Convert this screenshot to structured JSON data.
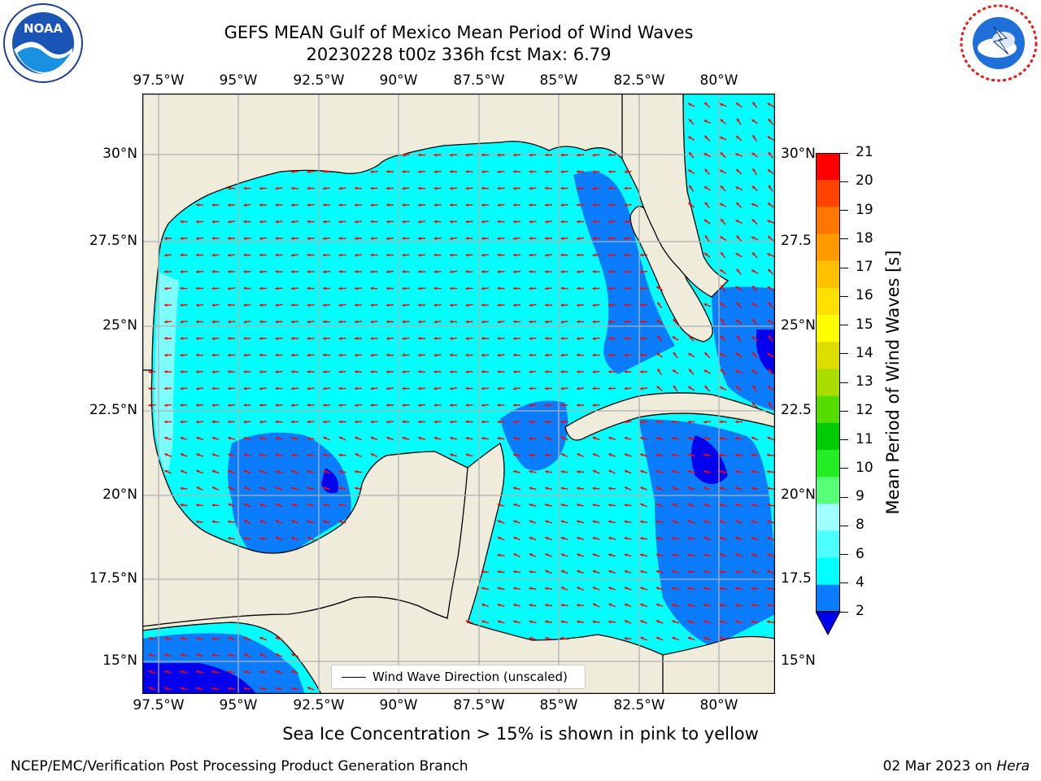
{
  "header": {
    "title_line1": "GEFS MEAN Gulf of Mexico Mean Period of Wind Waves",
    "title_line2": "20230228 t00z 336h fcst   Max: 6.79"
  },
  "logos": {
    "left": {
      "name": "noaa-logo",
      "text": "NOAA",
      "ring_text": "NATIONAL OCEANIC AND ATMOSPHERIC ADMINISTRATION · U.S. DEPARTMENT OF COMMERCE"
    },
    "right": {
      "name": "nws-logo",
      "ring_text": "NATIONAL WEATHER SERVICE"
    }
  },
  "map": {
    "lon_labels": [
      "97.5°W",
      "95°W",
      "92.5°W",
      "90°W",
      "87.5°W",
      "85°W",
      "82.5°W",
      "80°W"
    ],
    "lat_labels_left": [
      "30°N",
      "27.5°N",
      "25°N",
      "22.5°N",
      "20°N",
      "17.5°N",
      "15°N"
    ],
    "lat_labels_right": [
      "30°N",
      "27.5",
      "25°N",
      "22.5",
      "20°N",
      "17.5",
      "15°N"
    ],
    "legend_label": "Wind Wave Direction (unscaled)",
    "colors": {
      "land": "#efecdc",
      "c2_4": "#0a7dff",
      "c4_6": "#00ffff",
      "c6_8": "#7dffff",
      "c0_2": "#0000ee",
      "arrow": "#ff0000",
      "grid": "#b0b0b0"
    }
  },
  "colorbar": {
    "label": "Mean Period of Wind Waves [s]",
    "ticks": [
      "2",
      "4",
      "6",
      "8",
      "9",
      "10",
      "11",
      "12",
      "13",
      "14",
      "15",
      "16",
      "17",
      "18",
      "19",
      "20",
      "21"
    ],
    "colors": [
      "#0a7dff",
      "#00ffff",
      "#4dffff",
      "#a0ffff",
      "#55ff77",
      "#22ee22",
      "#00cc00",
      "#55dd00",
      "#aadd00",
      "#dddd00",
      "#ffff00",
      "#ffe000",
      "#ffc000",
      "#ff9900",
      "#ff7700",
      "#ff4400",
      "#ff0000"
    ],
    "under_color": "#0000ee"
  },
  "chart_data": {
    "type": "heatmap",
    "title": "GEFS MEAN Gulf of Mexico Mean Period of Wind Waves",
    "subtitle": "20230228 t00z 336h fcst   Max: 6.79",
    "variable_label": "Mean Period of Wind Waves [s]",
    "max_value": 6.79,
    "lon_range": [
      "97.5°W",
      "80°W"
    ],
    "lat_range": [
      "15°N",
      "30°N"
    ],
    "color_levels": [
      2,
      4,
      6,
      8,
      9,
      10,
      11,
      12,
      13,
      14,
      15,
      16,
      17,
      18,
      19,
      20,
      21
    ],
    "vector_field": "Wind Wave Direction (unscaled)",
    "legend_placement": "bottom-center",
    "grid": true
  },
  "footer": {
    "note": "Sea Ice Concentration > 15% is shown in pink to yellow",
    "credit": "NCEP/EMC/Verification Post Processing Product Generation Branch",
    "date": "02 Mar 2023 on ",
    "machine": "Hera"
  }
}
